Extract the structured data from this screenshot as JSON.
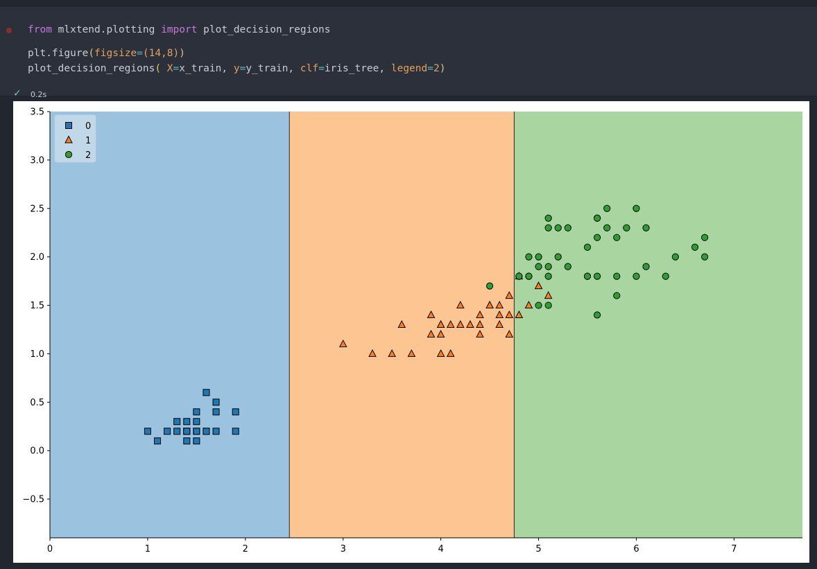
{
  "editor": {
    "code": {
      "line1": {
        "kw_from": "from",
        "module": " mlxtend.plotting ",
        "kw_import": "import",
        "name": " plot_decision_regions"
      },
      "line2": {
        "fn": "plt.figure",
        "open": "(",
        "arg": "figsize",
        "eq": "=",
        "val": "(14,8)",
        "close": ")"
      },
      "line3": {
        "fn": "plot_decision_regions",
        "open": "(",
        "a1": " X",
        "e1": "=",
        "v1": "x_train, ",
        "a2": "y",
        "e2": "=",
        "v2": "y_train, ",
        "a3": "clf",
        "e3": "=",
        "v3": "iris_tree, ",
        "a4": "legend",
        "e4": "=",
        "v4": "2",
        "close": ")"
      }
    },
    "status": {
      "check": "✓",
      "exec_time": "0.2s"
    }
  },
  "chart_data": {
    "type": "scatter",
    "xlim": [
      0,
      7.7
    ],
    "ylim": [
      -0.9,
      3.5
    ],
    "xticks": [
      0,
      1,
      2,
      3,
      4,
      5,
      6,
      7
    ],
    "yticks": [
      3.5,
      3.0,
      2.5,
      2.0,
      1.5,
      1.0,
      0.5,
      0.0,
      -0.5
    ],
    "xtick_labels": [
      "0",
      "1",
      "2",
      "3",
      "4",
      "5",
      "6",
      "7"
    ],
    "ytick_labels": [
      "3.5",
      "3.0",
      "2.5",
      "2.0",
      "1.5",
      "1.0",
      "0.5",
      "0.0",
      "−0.5"
    ],
    "grid": false,
    "legend_position": "top-left",
    "regions": [
      {
        "class": "0",
        "x_from": 0,
        "x_to": 2.45,
        "color": "#9bc2de"
      },
      {
        "class": "1",
        "x_from": 2.45,
        "x_to": 4.75,
        "color": "#fdc592"
      },
      {
        "class": "2",
        "x_from": 4.75,
        "x_to": 7.7,
        "color": "#a8d5a0"
      }
    ],
    "series": [
      {
        "name": "0",
        "marker": "square",
        "color": "#1f77b4",
        "x": [
          1.0,
          1.1,
          1.2,
          1.3,
          1.3,
          1.4,
          1.4,
          1.4,
          1.4,
          1.4,
          1.5,
          1.5,
          1.5,
          1.5,
          1.5,
          1.6,
          1.6,
          1.6,
          1.7,
          1.7,
          1.7,
          1.9,
          1.9
        ],
        "y": [
          0.2,
          0.1,
          0.2,
          0.2,
          0.3,
          0.2,
          0.3,
          0.1,
          0.2,
          0.2,
          0.2,
          0.4,
          0.1,
          0.3,
          0.2,
          0.2,
          0.6,
          0.2,
          0.5,
          0.4,
          0.2,
          0.2,
          0.4
        ]
      },
      {
        "name": "1",
        "marker": "triangle",
        "color": "#ff7f0e",
        "x": [
          3.0,
          3.3,
          3.5,
          3.6,
          3.7,
          3.9,
          3.9,
          4.0,
          4.0,
          4.0,
          4.0,
          4.1,
          4.1,
          4.2,
          4.2,
          4.3,
          4.4,
          4.4,
          4.4,
          4.5,
          4.5,
          4.6,
          4.6,
          4.6,
          4.7,
          4.7,
          4.7,
          4.8,
          4.8,
          4.9,
          5.0,
          5.1
        ],
        "y": [
          1.1,
          1.0,
          1.0,
          1.3,
          1.0,
          1.4,
          1.2,
          1.3,
          1.2,
          1.0,
          1.3,
          1.3,
          1.0,
          1.5,
          1.3,
          1.3,
          1.4,
          1.3,
          1.2,
          1.5,
          1.5,
          1.5,
          1.4,
          1.3,
          1.6,
          1.4,
          1.2,
          1.4,
          1.8,
          1.5,
          1.7,
          1.6
        ]
      },
      {
        "name": "2",
        "marker": "circle",
        "color": "#2ca02c",
        "x": [
          4.5,
          4.8,
          4.8,
          4.9,
          4.9,
          4.9,
          5.0,
          5.0,
          5.0,
          5.1,
          5.1,
          5.1,
          5.1,
          5.1,
          5.2,
          5.2,
          5.3,
          5.3,
          5.5,
          5.5,
          5.5,
          5.6,
          5.6,
          5.6,
          5.6,
          5.6,
          5.7,
          5.7,
          5.8,
          5.8,
          5.8,
          5.9,
          6.0,
          6.0,
          6.1,
          6.1,
          6.3,
          6.4,
          6.6,
          6.7,
          6.7
        ],
        "y": [
          1.7,
          1.8,
          1.8,
          2.0,
          1.8,
          1.8,
          2.0,
          1.9,
          1.5,
          2.4,
          2.3,
          1.9,
          1.8,
          1.5,
          2.3,
          2.0,
          2.3,
          1.9,
          2.1,
          1.8,
          1.8,
          2.4,
          2.2,
          1.8,
          1.4,
          2.4,
          2.5,
          2.3,
          2.2,
          1.8,
          1.6,
          2.3,
          2.5,
          1.8,
          2.3,
          1.9,
          1.8,
          2.0,
          2.1,
          2.2,
          2.0
        ]
      }
    ]
  }
}
